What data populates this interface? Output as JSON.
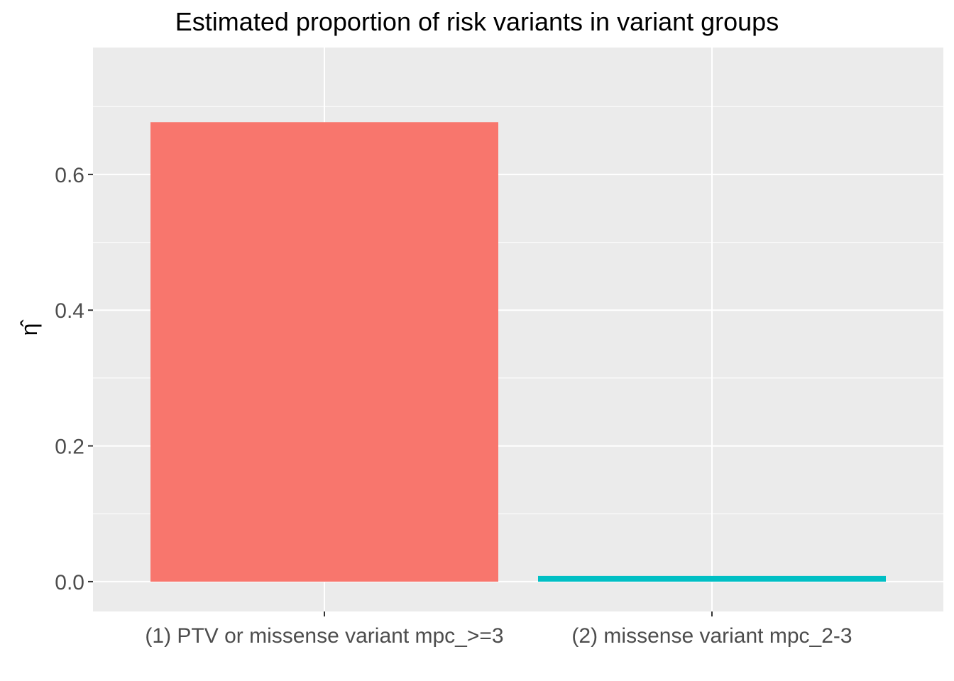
{
  "chart_data": {
    "type": "bar",
    "title": "Estimated proportion of risk variants in variant groups",
    "xlabel": "",
    "ylabel": "η̂",
    "categories": [
      "(1) PTV or missense variant mpc_>=3",
      "(2) missense variant mpc_2-3"
    ],
    "values": [
      0.677,
      0.008
    ],
    "colors": [
      "#F8766D",
      "#00BFC4"
    ],
    "ylim": [
      -0.044,
      0.787
    ],
    "yticks": [
      0.0,
      0.2,
      0.4,
      0.6
    ],
    "ytick_labels": [
      "0.0",
      "0.2",
      "0.4",
      "0.6"
    ],
    "grid": true,
    "legend": "none",
    "panel_background": "#EBEBEB"
  }
}
